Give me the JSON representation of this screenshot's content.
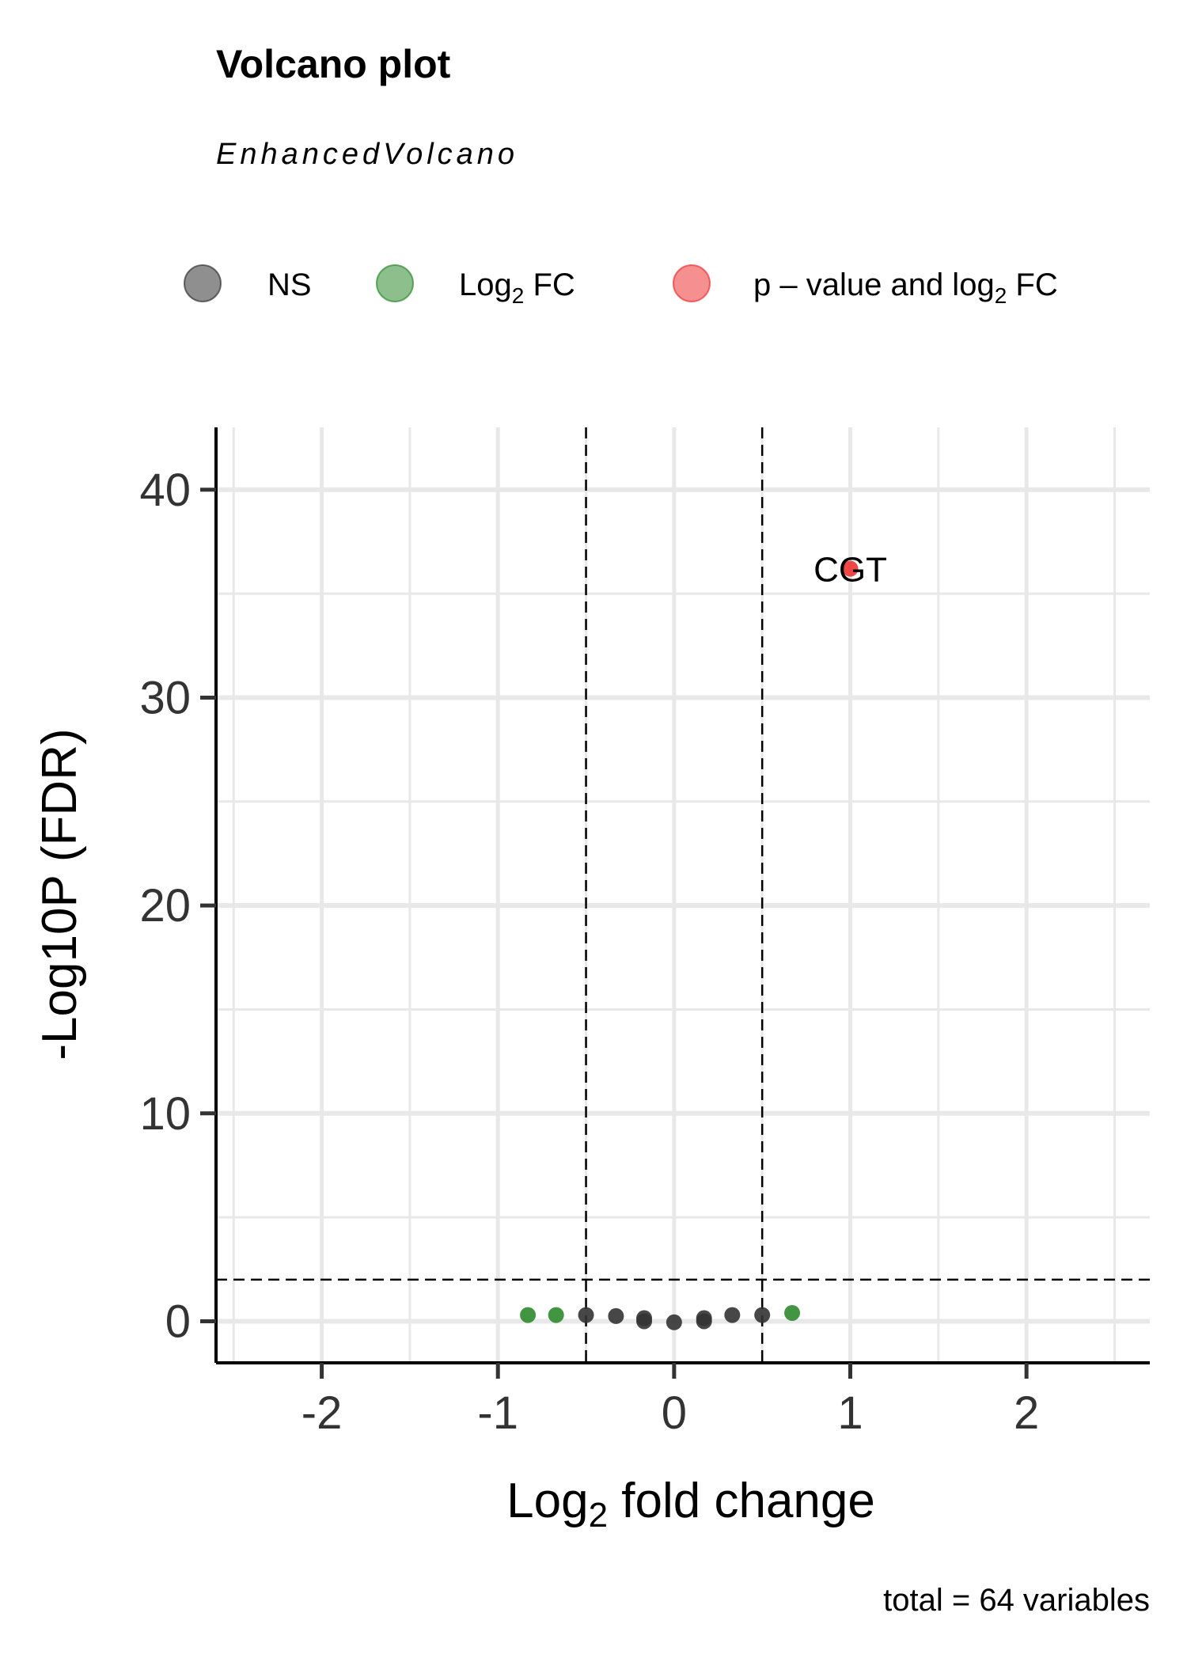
{
  "chart_data": {
    "type": "scatter",
    "title": "Volcano plot",
    "subtitle": "EnhancedVolcano",
    "xlabel": "Log2 fold change",
    "xlabel_main": "Log",
    "xlabel_sub": "2",
    "xlabel_rest": " fold change",
    "ylabel": "-Log10P (FDR)",
    "caption": "total = 64 variables",
    "xlim": [
      -2.6,
      2.7
    ],
    "ylim": [
      -2,
      43
    ],
    "x_ticks": [
      -2,
      -1,
      0,
      1,
      2
    ],
    "x_tick_labels": [
      "-2",
      "-1",
      "0",
      "1",
      "2"
    ],
    "y_ticks": [
      0,
      10,
      20,
      30,
      40
    ],
    "y_tick_labels": [
      "0",
      "10",
      "20",
      "30",
      "40"
    ],
    "grid": true,
    "legend_position": "top",
    "legend": [
      {
        "key": "NS",
        "main": "NS",
        "sub": "",
        "rest": "",
        "color": "#333333"
      },
      {
        "key": "FC",
        "main": "Log",
        "sub": "2",
        "rest": " FC",
        "color": "#2e8b2e"
      },
      {
        "key": "P_FC",
        "main": "p – value and log",
        "sub": "2",
        "rest": " FC",
        "color": "#ee3333"
      }
    ],
    "cutoffs": {
      "fc": [
        -0.5,
        0.5
      ],
      "p": 2
    },
    "series": [
      {
        "name": "NS",
        "color": "#333333",
        "points": [
          {
            "x": -0.5,
            "y": 0.3
          },
          {
            "x": -0.33,
            "y": 0.25
          },
          {
            "x": -0.17,
            "y": 0.15
          },
          {
            "x": -0.17,
            "y": 0.0
          },
          {
            "x": 0.0,
            "y": -0.05
          },
          {
            "x": 0.17,
            "y": 0.0
          },
          {
            "x": 0.17,
            "y": 0.15
          },
          {
            "x": 0.33,
            "y": 0.3
          },
          {
            "x": 0.5,
            "y": 0.3
          }
        ]
      },
      {
        "name": "Log2 FC",
        "color": "#2e8b2e",
        "points": [
          {
            "x": -0.83,
            "y": 0.3
          },
          {
            "x": -0.67,
            "y": 0.3
          },
          {
            "x": 0.67,
            "y": 0.4
          }
        ]
      },
      {
        "name": "p - value and log2 FC",
        "color": "#ee3333",
        "points": [
          {
            "x": 1.0,
            "y": 36.2,
            "label": "CGT"
          }
        ]
      }
    ]
  }
}
